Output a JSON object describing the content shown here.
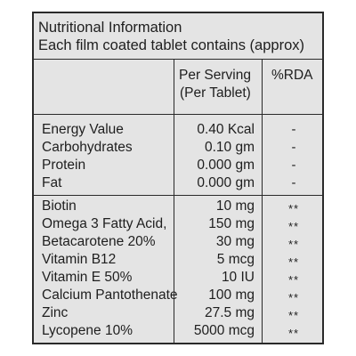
{
  "header": {
    "title": "Nutritional Information",
    "subtitle": "Each film coated tablet contains (approx)"
  },
  "columns": {
    "per_serving_line1": "Per Serving",
    "per_serving_line2": "(Per Tablet)",
    "rda": "%RDA"
  },
  "energy_rows": [
    {
      "name": "Energy Value",
      "amount": "0.40 Kcal",
      "rda": "-"
    },
    {
      "name": "Carbohydrates",
      "amount": "0.10 gm",
      "rda": "-"
    },
    {
      "name": "Protein",
      "amount": "0.000 gm",
      "rda": "-"
    },
    {
      "name": "Fat",
      "amount": "0.000 gm",
      "rda": "-"
    }
  ],
  "nutrient_rows": [
    {
      "name": "Biotin",
      "amount": "10 mg",
      "rda": "**"
    },
    {
      "name": "Omega 3 Fatty Acid,",
      "amount": "150 mg",
      "rda": "**"
    },
    {
      "name": "Betacarotene 20%",
      "amount": "30 mg",
      "rda": "**"
    },
    {
      "name": "Vitamin B12",
      "amount": "5 mcg",
      "rda": "**"
    },
    {
      "name": "Vitamin E 50%",
      "amount": "10 IU",
      "rda": "**"
    },
    {
      "name": "Calcium Pantothenate",
      "amount": "100 mg",
      "rda": "**"
    },
    {
      "name": "Zinc",
      "amount": "27.5 mg",
      "rda": "**"
    },
    {
      "name": "Lycopene 10%",
      "amount": "5000 mcg",
      "rda": "**"
    }
  ]
}
